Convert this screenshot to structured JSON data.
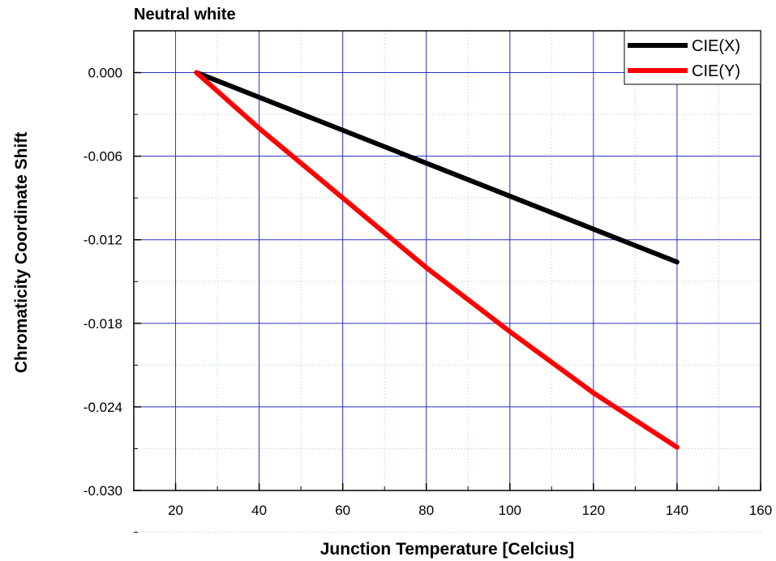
{
  "chart_data": {
    "type": "line",
    "title": "Neutral white",
    "xlabel": "Junction Temperature [Celcius]",
    "ylabel": "Chromaticity Coordinate Shift",
    "xlim": [
      10,
      160
    ],
    "ylim": [
      -0.03,
      0.003
    ],
    "x_ticks": [
      20,
      40,
      60,
      80,
      100,
      120,
      140,
      160
    ],
    "x_tick_labels": [
      "20",
      "40",
      "60",
      "80",
      "100",
      "120",
      "140",
      "160"
    ],
    "y_ticks": [
      0.0,
      -0.006,
      -0.012,
      -0.018,
      -0.024,
      -0.03
    ],
    "y_tick_labels": [
      "0.000",
      "-0.006",
      "-0.012",
      "-0.018",
      "-0.024",
      "-0.030"
    ],
    "grid": true,
    "legend_position": "top-right",
    "series": [
      {
        "name": "CIE(X)",
        "color": "#000000",
        "x": [
          25,
          140
        ],
        "y": [
          0.0,
          -0.0136
        ]
      },
      {
        "name": "CIE(Y)",
        "color": "#ff0000",
        "x": [
          25,
          40,
          60,
          80,
          100,
          120,
          140
        ],
        "y": [
          0.0,
          -0.004,
          -0.009,
          -0.014,
          -0.0186,
          -0.023,
          -0.0269
        ]
      }
    ]
  }
}
